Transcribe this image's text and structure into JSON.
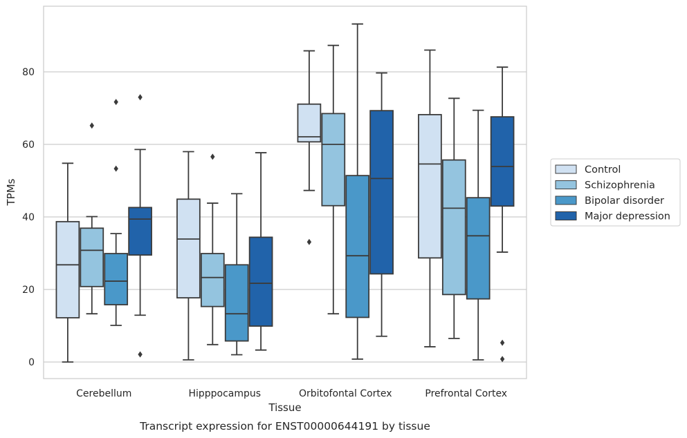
{
  "chart_data": {
    "type": "box",
    "title": "Transcript expression for ENST00000644191 by tissue",
    "xlabel": "Tissue",
    "ylabel": "TPMs",
    "ylim": [
      -4.5,
      98
    ],
    "yticks": [
      0,
      20,
      40,
      60,
      80
    ],
    "grid": "horizontal",
    "legend_position": "right",
    "categories": [
      "Cerebellum",
      "Hipppocampus",
      "Orbitofontal Cortex",
      "Prefrontal Cortex"
    ],
    "series": [
      {
        "name": "Control",
        "color": "#d0e1f2",
        "boxes": [
          {
            "whislo": 0,
            "q1": 12.2,
            "median": 26.8,
            "q3": 38.7,
            "whishi": 54.8,
            "fliers": []
          },
          {
            "whislo": 0.6,
            "q1": 17.7,
            "median": 33.9,
            "q3": 44.9,
            "whishi": 58.0,
            "fliers": []
          },
          {
            "whislo": 47.3,
            "q1": 60.7,
            "median": 62.1,
            "q3": 71.1,
            "whishi": 85.8,
            "fliers": [
              33.1
            ]
          },
          {
            "whislo": 4.2,
            "q1": 28.7,
            "median": 54.6,
            "q3": 68.2,
            "whishi": 86.0,
            "fliers": []
          }
        ]
      },
      {
        "name": "Schizophrenia",
        "color": "#94c4df",
        "boxes": [
          {
            "whislo": 13.3,
            "q1": 20.8,
            "median": 30.8,
            "q3": 36.9,
            "whishi": 40.1,
            "fliers": [
              65.2
            ]
          },
          {
            "whislo": 4.8,
            "q1": 15.3,
            "median": 23.3,
            "q3": 29.9,
            "whishi": 43.8,
            "fliers": [
              56.6
            ]
          },
          {
            "whislo": 13.3,
            "q1": 43.1,
            "median": 60.0,
            "q3": 68.5,
            "whishi": 87.3,
            "fliers": []
          },
          {
            "whislo": 6.5,
            "q1": 18.6,
            "median": 42.4,
            "q3": 55.7,
            "whishi": 72.7,
            "fliers": []
          }
        ]
      },
      {
        "name": "Bipolar disorder",
        "color": "#4a98c9",
        "boxes": [
          {
            "whislo": 10.1,
            "q1": 15.8,
            "median": 22.3,
            "q3": 29.9,
            "whishi": 35.4,
            "fliers": [
              53.3,
              71.7
            ]
          },
          {
            "whislo": 2.0,
            "q1": 5.8,
            "median": 13.3,
            "q3": 26.8,
            "whishi": 46.4,
            "fliers": []
          },
          {
            "whislo": 0.8,
            "q1": 12.3,
            "median": 29.3,
            "q3": 51.4,
            "whishi": 93.2,
            "fliers": []
          },
          {
            "whislo": 0.6,
            "q1": 17.4,
            "median": 34.8,
            "q3": 45.3,
            "whishi": 69.4,
            "fliers": []
          }
        ]
      },
      {
        "name": "Major depression",
        "color": "#2163aa",
        "boxes": [
          {
            "whislo": 12.9,
            "q1": 29.5,
            "median": 39.4,
            "q3": 42.6,
            "whishi": 58.6,
            "fliers": [
              2.1,
              73.0
            ]
          },
          {
            "whislo": 3.3,
            "q1": 9.9,
            "median": 21.7,
            "q3": 34.4,
            "whishi": 57.7,
            "fliers": []
          },
          {
            "whislo": 7.1,
            "q1": 24.3,
            "median": 50.6,
            "q3": 69.3,
            "whishi": 79.7,
            "fliers": []
          },
          {
            "whislo": 30.3,
            "q1": 43.0,
            "median": 53.9,
            "q3": 67.6,
            "whishi": 81.3,
            "fliers": [
              5.3,
              0.8
            ]
          }
        ]
      }
    ]
  }
}
